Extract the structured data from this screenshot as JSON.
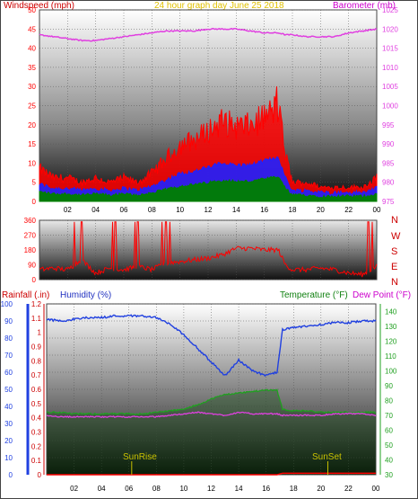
{
  "header": {
    "left_label": "Windspeed (mph)",
    "center_label": "24 hour graph day   June 25 2018",
    "right_label": "Barometer (mb)"
  },
  "bottom_header": {
    "rain_label": "Rainfall (.in)",
    "humidity_label": "Humidity (%)",
    "temp_label": "Temperature (°F)",
    "dew_label": "Dew Point (°F)"
  },
  "colors": {
    "windspeed": "#ff0000",
    "gust": "#ff0000",
    "avg_wind": "#2020ff",
    "low_wind": "#008000",
    "barometer": "#e040e0",
    "direction": "#ff0000",
    "humidity": "#2040e0",
    "temperature": "#20a020",
    "dewpoint": "#e040e0",
    "rainfall": "#ff0000",
    "sun_markers": "#c8c000"
  },
  "x_ticks": [
    "02",
    "04",
    "06",
    "08",
    "10",
    "12",
    "14",
    "16",
    "18",
    "20",
    "22",
    "00"
  ],
  "direction_letters": [
    "N",
    "W",
    "S",
    "E",
    "N"
  ],
  "sun": {
    "sunrise": "SunRise",
    "sunset": "SunSet"
  },
  "chart_data": [
    {
      "type": "line",
      "title": "24 hour graph day   June 25 2018",
      "ylabel": "Windspeed (mph)",
      "y2label": "Barometer (mb)",
      "ylim": [
        0,
        50
      ],
      "y2lim": [
        975,
        1025
      ],
      "yticks": [
        0,
        5,
        10,
        15,
        20,
        25,
        30,
        35,
        40,
        45,
        50
      ],
      "y2ticks": [
        975,
        980,
        985,
        990,
        995,
        1000,
        1005,
        1010,
        1015,
        1020,
        1025
      ],
      "x": [
        0,
        1,
        2,
        3,
        4,
        5,
        6,
        7,
        8,
        9,
        10,
        11,
        12,
        13,
        14,
        15,
        16,
        17,
        17.5,
        18,
        19,
        20,
        21,
        22,
        23,
        24
      ],
      "series": [
        {
          "name": "Windspeed (mph)",
          "values": [
            7,
            5,
            5,
            4,
            5,
            4,
            5,
            4,
            6,
            9,
            12,
            13,
            15,
            17,
            16,
            16,
            18,
            20,
            10,
            4,
            4,
            3,
            3,
            3,
            3,
            5
          ]
        },
        {
          "name": "Barometer (mb)",
          "values": [
            1018.5,
            1018,
            1017.5,
            1017,
            1017,
            1017.5,
            1018,
            1018.5,
            1019,
            1019.5,
            1019.5,
            1019.5,
            1020,
            1020,
            1020,
            1019.5,
            1019,
            1019,
            1018.5,
            1018.5,
            1018,
            1018,
            1018,
            1019,
            1019.5,
            1020
          ]
        }
      ],
      "peak_gust": 30,
      "peak_gust_hour": 16.9
    },
    {
      "type": "line",
      "ylabel": "Wind direction",
      "ylim": [
        0,
        360
      ],
      "yticks": [
        0,
        90,
        180,
        270,
        360
      ],
      "x": [
        0,
        1,
        2,
        3,
        4,
        5,
        6,
        7,
        8,
        9,
        10,
        11,
        12,
        13,
        14,
        15,
        16,
        17,
        17.5,
        18,
        19,
        20,
        21,
        22,
        23,
        24
      ],
      "series": [
        {
          "name": "Wind direction",
          "values": [
            60,
            70,
            60,
            120,
            40,
            70,
            60,
            80,
            60,
            100,
            110,
            120,
            130,
            150,
            190,
            190,
            180,
            180,
            90,
            60,
            60,
            70,
            60,
            40,
            30,
            80
          ]
        }
      ]
    },
    {
      "type": "line",
      "ylabel": "Humidity (%)",
      "y2label": "Temperature (°F) / Dew Point (°F)",
      "ylim": [
        0,
        100
      ],
      "y2lim": [
        30,
        145
      ],
      "yticks": [
        0,
        10,
        20,
        30,
        40,
        50,
        60,
        70,
        80,
        90,
        100
      ],
      "y2ticks": [
        30,
        40,
        50,
        60,
        70,
        80,
        90,
        100,
        110,
        120,
        130,
        140
      ],
      "rain_ylim": [
        0,
        1.2
      ],
      "rain_yticks": [
        0,
        0.1,
        0.2,
        0.3,
        0.4,
        0.5,
        0.6,
        0.7,
        0.8,
        0.9,
        1,
        1.1,
        1.2
      ],
      "x": [
        0,
        1,
        2,
        3,
        4,
        5,
        6,
        7,
        8,
        9,
        10,
        11,
        12,
        13,
        14,
        15,
        16,
        16.8,
        17.2,
        18,
        19,
        20,
        21,
        22,
        23,
        24
      ],
      "series": [
        {
          "name": "Humidity (%)",
          "values": [
            91,
            90,
            91,
            92,
            92,
            93,
            93,
            93,
            92,
            88,
            82,
            74,
            66,
            58,
            67,
            61,
            58,
            60,
            85,
            86,
            87,
            88,
            89,
            89,
            90,
            90
          ]
        },
        {
          "name": "Temperature (°F)",
          "values": [
            72,
            72,
            71,
            71,
            71,
            71,
            71,
            71,
            72,
            73,
            74,
            77,
            81,
            84,
            85,
            86,
            87,
            87,
            74,
            73,
            73,
            72,
            72,
            72,
            72,
            72
          ]
        },
        {
          "name": "Dew Point (°F)",
          "values": [
            70,
            69,
            69,
            69,
            69,
            69,
            69,
            69,
            69,
            70,
            71,
            72,
            71,
            70,
            72,
            71,
            71,
            71,
            70,
            70,
            70,
            70,
            71,
            71,
            71,
            70
          ]
        },
        {
          "name": "Rainfall (.in)",
          "values": [
            0,
            0,
            0,
            0,
            0,
            0,
            0,
            0,
            0,
            0,
            0,
            0,
            0,
            0,
            0,
            0,
            0,
            0,
            0.01,
            0.01,
            0.01,
            0.01,
            0.01,
            0.01,
            0.01,
            0.01
          ]
        }
      ],
      "sunrise_hour": 6.2,
      "sunset_hour": 20.5
    }
  ]
}
